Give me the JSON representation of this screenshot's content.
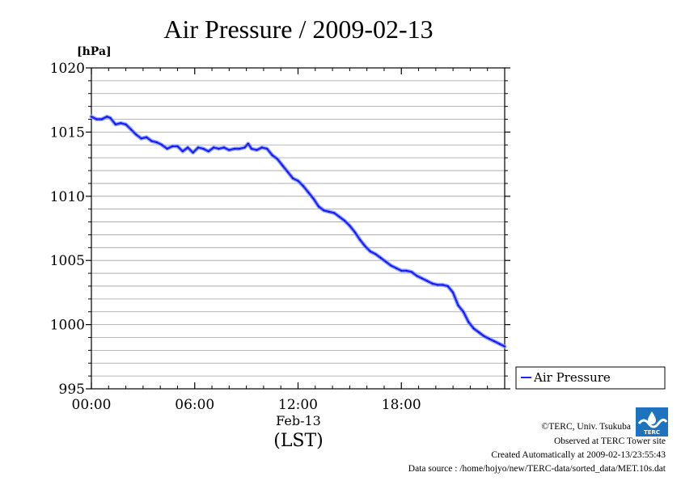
{
  "chart_data": {
    "type": "line",
    "title": "Air Pressure / 2009-02-13",
    "ylabel_unit": "[hPa]",
    "ylim": [
      995,
      1020
    ],
    "y_ticks": [
      "1020",
      "1015",
      "1010",
      "1005",
      "1000",
      "995"
    ],
    "y_tick_values": [
      1020,
      1015,
      1010,
      1005,
      1000,
      995
    ],
    "xlim_hours": [
      0,
      24
    ],
    "x_tick_hours": [
      0,
      6,
      12,
      18
    ],
    "x_ticks": [
      "00:00",
      "06:00",
      "12:00",
      "18:00"
    ],
    "x_date_label": "Feb-13",
    "x_timezone_label": "(LST)",
    "grid": "horizontal",
    "legend_position": "right",
    "series": [
      {
        "name": "Air Pressure",
        "color": "#2323ff",
        "x_hours": [
          0,
          0.3,
          0.6,
          0.9,
          1.1,
          1.4,
          1.7,
          2.0,
          2.3,
          2.6,
          2.9,
          3.2,
          3.5,
          3.8,
          4.1,
          4.4,
          4.7,
          5.0,
          5.3,
          5.6,
          5.9,
          6.2,
          6.5,
          6.8,
          7.1,
          7.4,
          7.7,
          8.0,
          8.3,
          8.6,
          8.9,
          9.1,
          9.3,
          9.6,
          9.9,
          10.2,
          10.5,
          10.8,
          11.1,
          11.4,
          11.7,
          12.0,
          12.3,
          12.6,
          12.9,
          13.2,
          13.5,
          13.8,
          14.1,
          14.4,
          14.7,
          15.0,
          15.3,
          15.6,
          15.9,
          16.2,
          16.5,
          16.8,
          17.1,
          17.4,
          17.7,
          18.0,
          18.3,
          18.6,
          18.9,
          19.2,
          19.5,
          19.8,
          20.1,
          20.4,
          20.7,
          21.0,
          21.3,
          21.6,
          21.9,
          22.2,
          22.5,
          22.8,
          23.1,
          23.4,
          23.7,
          24.0
        ],
        "values": [
          1016.2,
          1016.0,
          1016.0,
          1016.2,
          1016.1,
          1015.6,
          1015.7,
          1015.6,
          1015.2,
          1014.8,
          1014.5,
          1014.6,
          1014.3,
          1014.2,
          1014.0,
          1013.7,
          1013.9,
          1013.9,
          1013.5,
          1013.8,
          1013.4,
          1013.8,
          1013.7,
          1013.5,
          1013.8,
          1013.7,
          1013.8,
          1013.6,
          1013.7,
          1013.7,
          1013.8,
          1014.1,
          1013.7,
          1013.6,
          1013.8,
          1013.7,
          1013.2,
          1012.9,
          1012.4,
          1011.9,
          1011.4,
          1011.2,
          1010.8,
          1010.3,
          1009.8,
          1009.2,
          1008.9,
          1008.8,
          1008.7,
          1008.4,
          1008.1,
          1007.7,
          1007.2,
          1006.6,
          1006.1,
          1005.7,
          1005.5,
          1005.2,
          1004.9,
          1004.6,
          1004.4,
          1004.2,
          1004.2,
          1004.1,
          1003.8,
          1003.6,
          1003.4,
          1003.2,
          1003.1,
          1003.1,
          1003.0,
          1002.5,
          1001.5,
          1001.0,
          1000.2,
          999.7,
          999.4,
          999.1,
          998.9,
          998.7,
          998.5,
          998.3
        ]
      }
    ]
  },
  "footer": {
    "copyright": "©TERC, Univ. Tsukuba",
    "observed": "Observed at TERC Tower site",
    "created": "Created Automatically at 2009-02-13/23:55:43",
    "source": "Data source : /home/hojyo/new/TERC-data/sorted_data/MET.10s.dat",
    "logo_icon": "terc-logo-icon",
    "logo_text": "TERC",
    "logo_color": "#1e73be"
  }
}
